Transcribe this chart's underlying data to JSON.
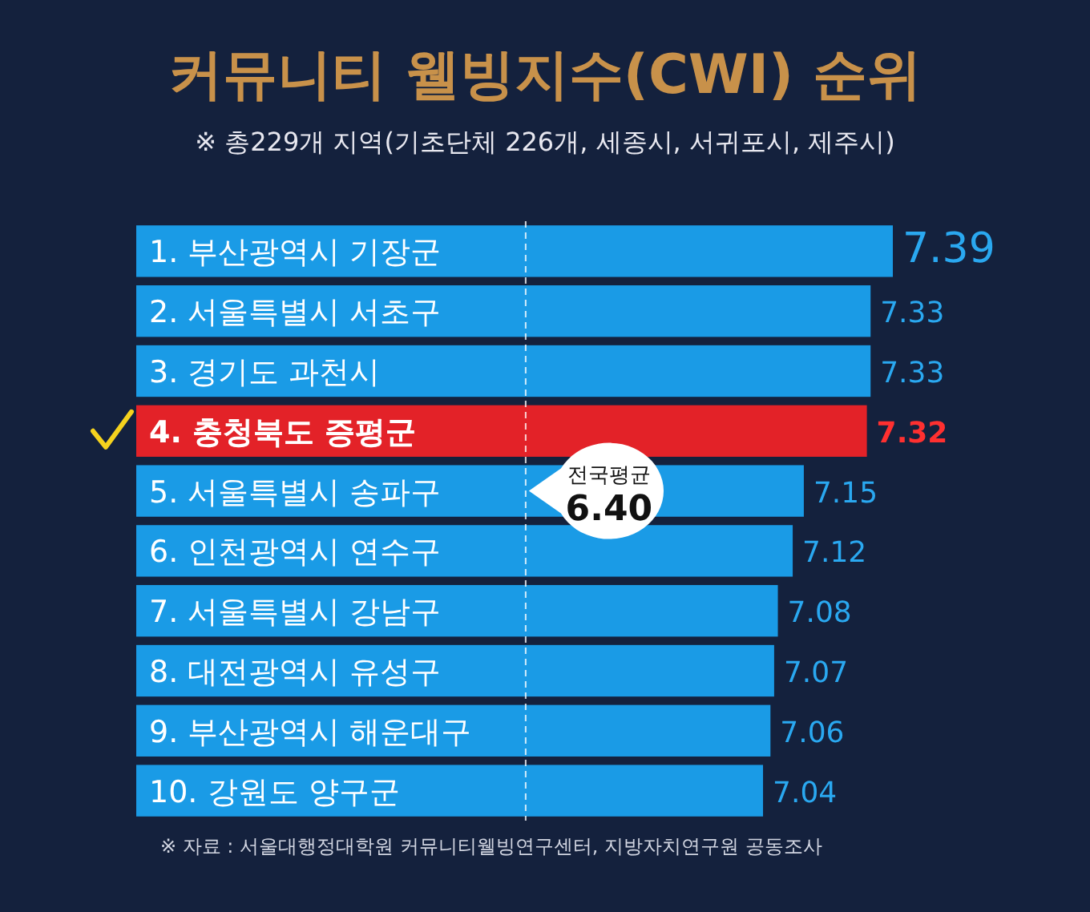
{
  "chart_data": {
    "type": "bar",
    "orientation": "horizontal",
    "title": "커뮤니티 웰빙지수(CWI) 순위",
    "subtitle": "※ 총229개 지역(기초단체 226개, 세종시, 서귀포시, 제주시)",
    "categories": [
      "1. 부산광역시 기장군",
      "2. 서울특별시 서초구",
      "3. 경기도 과천시",
      "4. 충청북도 증평군",
      "5. 서울특별시 송파구",
      "6. 인천광역시 연수구",
      "7. 서울특별시 강남구",
      "8. 대전광역시 유성구",
      "9. 부산광역시 해운대구",
      "10. 강원도 양구군"
    ],
    "values": [
      7.39,
      7.33,
      7.33,
      7.32,
      7.15,
      7.12,
      7.08,
      7.07,
      7.06,
      7.04
    ],
    "colors": [
      "#1a9be6",
      "#1a9be6",
      "#1a9be6",
      "#e32228",
      "#1a9be6",
      "#1a9be6",
      "#1a9be6",
      "#1a9be6",
      "#1a9be6",
      "#1a9be6"
    ],
    "xlim": [
      5.35,
      7.39
    ],
    "data_labels": true,
    "ref_lines": [
      {
        "axis": "x",
        "value": 6.4,
        "label": "전국평균 6.40",
        "color": "#ffffff",
        "line_style": "dashed"
      }
    ],
    "annotations": [
      "※ 자료 : 서울대행정대학원 커뮤니티웰빙연구센터, 지방자치연구원 공동조사"
    ]
  }
}
